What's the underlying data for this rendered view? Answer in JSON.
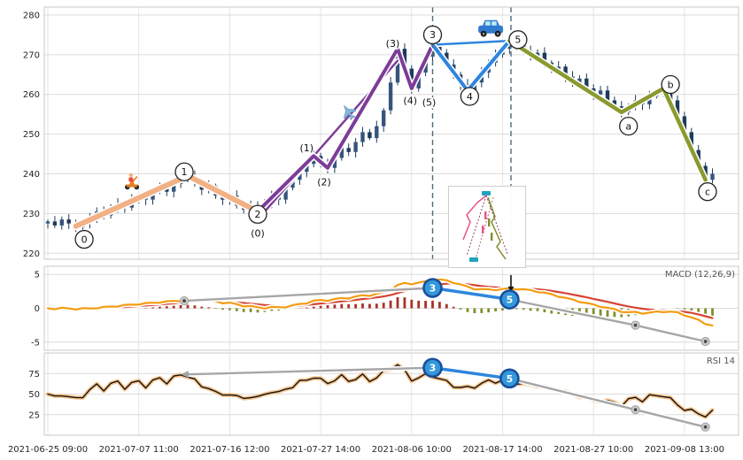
{
  "chart_data": {
    "type": "candlestick",
    "x_tick_labels": [
      "2021-06-25 09:00",
      "2021-07-07 11:00",
      "2021-07-16 12:00",
      "2021-07-27 14:00",
      "2021-08-06 10:00",
      "2021-08-17 14:00",
      "2021-08-27 10:00",
      "2021-09-08 13:00"
    ],
    "x_tick_indices": [
      0,
      13,
      26,
      39,
      52,
      65,
      78,
      91
    ],
    "price_panel": {
      "y_ticks": [
        280,
        270,
        260,
        250,
        240,
        230,
        220
      ],
      "ylim": [
        218.5,
        282
      ],
      "closes": [
        228.0,
        227.0,
        228.5,
        227.5,
        226.5,
        227.5,
        229.0,
        230.5,
        229.5,
        231.5,
        232.5,
        231.5,
        233.5,
        234.5,
        233.5,
        235.5,
        236.5,
        235.5,
        237.5,
        238.5,
        239.5,
        238.0,
        236.0,
        237.0,
        234.5,
        233.5,
        234.5,
        232.0,
        231.0,
        232.0,
        230.5,
        232.5,
        234.5,
        233.5,
        236.5,
        238.5,
        240.5,
        242.5,
        244.5,
        242.5,
        241.5,
        244.0,
        246.5,
        245.5,
        248.0,
        250.5,
        249.0,
        252.0,
        256.0,
        263.0,
        271.5,
        266.5,
        261.5,
        265.5,
        269.5,
        272.5,
        270.5,
        267.5,
        265.0,
        262.5,
        261.0,
        263.0,
        265.5,
        268.0,
        270.0,
        271.5,
        273.5,
        272.5,
        271.0,
        269.5,
        270.5,
        268.0,
        266.0,
        267.0,
        264.5,
        263.0,
        264.0,
        261.5,
        260.0,
        261.0,
        258.5,
        257.0,
        255.5,
        257.0,
        258.5,
        257.5,
        259.5,
        260.5,
        261.5,
        258.5,
        254.5,
        250.5,
        246.0,
        242.0,
        238.5,
        240.0
      ],
      "waves": [
        {
          "name": "wave-0-1-2",
          "color": "#f1b185",
          "width": 6,
          "points": [
            [
              4,
              226.8
            ],
            [
              20,
              239.5
            ],
            [
              30,
              230.5
            ]
          ]
        },
        {
          "name": "wave-sub-channel",
          "color": "#7d3c98",
          "width": 2.5,
          "points": [
            [
              30,
              228.5
            ],
            [
              50,
              268.5
            ]
          ]
        },
        {
          "name": "wave-sub-0-to-5",
          "color": "#7d3c98",
          "width": 4,
          "points": [
            [
              30,
              230.5
            ],
            [
              38,
              244.5
            ],
            [
              40,
              241.5
            ],
            [
              50,
              271.5
            ],
            [
              52,
              261.5
            ],
            [
              55,
              272.5
            ]
          ]
        },
        {
          "name": "wave-3-5-link",
          "color": "#2e86de",
          "width": 2.5,
          "points": [
            [
              55,
              272.5
            ],
            [
              66,
              273.5
            ]
          ]
        },
        {
          "name": "wave-3-4-5",
          "color": "#2e86de",
          "width": 4,
          "points": [
            [
              55,
              272.5
            ],
            [
              60,
              261.0
            ],
            [
              66,
              273.5
            ]
          ]
        },
        {
          "name": "wave-5-a-b-c",
          "color": "#8a9a2e",
          "width": 4.5,
          "points": [
            [
              66,
              273.5
            ],
            [
              82,
              255.5
            ],
            [
              88,
              261.5
            ],
            [
              94,
              238.5
            ]
          ]
        }
      ],
      "pivot_labels": [
        {
          "text": "0",
          "circled": true,
          "idx": 5.2,
          "price": 223.5
        },
        {
          "text": "1",
          "circled": true,
          "idx": 19.5,
          "price": 240.5
        },
        {
          "text": "2",
          "circled": true,
          "idx": 30,
          "price": 229.8
        },
        {
          "text": "(0)",
          "circled": false,
          "idx": 30,
          "price": 225.0
        },
        {
          "text": "(1)",
          "circled": false,
          "idx": 37,
          "price": 246.5
        },
        {
          "text": "(2)",
          "circled": false,
          "idx": 39.5,
          "price": 238.0
        },
        {
          "text": "(3)",
          "circled": false,
          "idx": 49.3,
          "price": 272.8
        },
        {
          "text": "(4)",
          "circled": false,
          "idx": 51.8,
          "price": 258.5
        },
        {
          "text": "(5)",
          "circled": false,
          "idx": 54.5,
          "price": 258.0
        },
        {
          "text": "3",
          "circled": true,
          "idx": 55,
          "price": 275.0
        },
        {
          "text": "4",
          "circled": true,
          "idx": 60.3,
          "price": 259.5
        },
        {
          "text": "5",
          "circled": true,
          "idx": 67.2,
          "price": 273.8
        },
        {
          "text": "a",
          "circled": true,
          "idx": 83,
          "price": 252.0
        },
        {
          "text": "b",
          "circled": true,
          "idx": 89,
          "price": 262.5
        },
        {
          "text": "c",
          "circled": true,
          "idx": 94.3,
          "price": 235.5
        }
      ],
      "vlines": [
        55,
        66.2
      ],
      "icons": [
        {
          "name": "scooter",
          "idx": 12,
          "price": 238.0
        },
        {
          "name": "airplane",
          "idx": 43,
          "price": 255.5
        },
        {
          "name": "car",
          "idx": 63.3,
          "price": 276.5
        }
      ]
    },
    "macd_panel": {
      "label": "MACD (12,26,9)",
      "y_ticks": [
        5,
        0,
        -5
      ],
      "overlay": {
        "segments": [
          {
            "style": "gray",
            "points": [
              [
                19.5,
                1.1
              ],
              [
                55,
                3.0
              ]
            ]
          },
          {
            "style": "blue",
            "points": [
              [
                55,
                3.0
              ],
              [
                66,
                1.3
              ]
            ]
          },
          {
            "style": "gray",
            "points": [
              [
                66,
                1.3
              ],
              [
                84,
                -2.5
              ],
              [
                94,
                -4.9
              ]
            ]
          }
        ],
        "dots": [
          [
            19.5,
            1.1
          ],
          [
            84,
            -2.5
          ],
          [
            94,
            -4.9
          ]
        ],
        "markers": [
          {
            "text": "3",
            "idx": 55,
            "value": 3.0
          },
          {
            "text": "5",
            "idx": 66,
            "value": 1.3
          }
        ],
        "arrow": {
          "idx": 66.2,
          "from": 4.9,
          "to": 2.3
        }
      }
    },
    "rsi_panel": {
      "label": "RSI 14",
      "y_ticks": [
        75,
        50,
        25
      ],
      "overlay": {
        "segments": [
          {
            "style": "gray",
            "points": [
              [
                20,
                74
              ],
              [
                55,
                82
              ]
            ],
            "start_arrow": true
          },
          {
            "style": "blue",
            "points": [
              [
                55,
                82
              ],
              [
                66,
                69
              ]
            ]
          },
          {
            "style": "gray",
            "points": [
              [
                66,
                69
              ],
              [
                84,
                31
              ],
              [
                94,
                10
              ]
            ]
          }
        ],
        "dots": [
          [
            84,
            31
          ],
          [
            94,
            10
          ]
        ],
        "markers": [
          {
            "text": "3",
            "idx": 55,
            "value": 82
          },
          {
            "text": "5",
            "idx": 66,
            "value": 69
          }
        ]
      }
    },
    "colors": {
      "candle_up": "#35557d",
      "candle_down": "#1e3a5c",
      "macd_line": "#f39c12",
      "macd_signal": "#d64535",
      "hist_pos": "#a93226",
      "hist_neg": "#7f8f2b",
      "rsi_line": "#111111",
      "rsi_glow": "#f7c58f",
      "trend_gray": "#a6a6a6",
      "trend_blue": "#2e86de",
      "marker_fill": "#3498db",
      "marker_ring": "#1a4f9c",
      "vline": "#4d6a7a"
    }
  }
}
